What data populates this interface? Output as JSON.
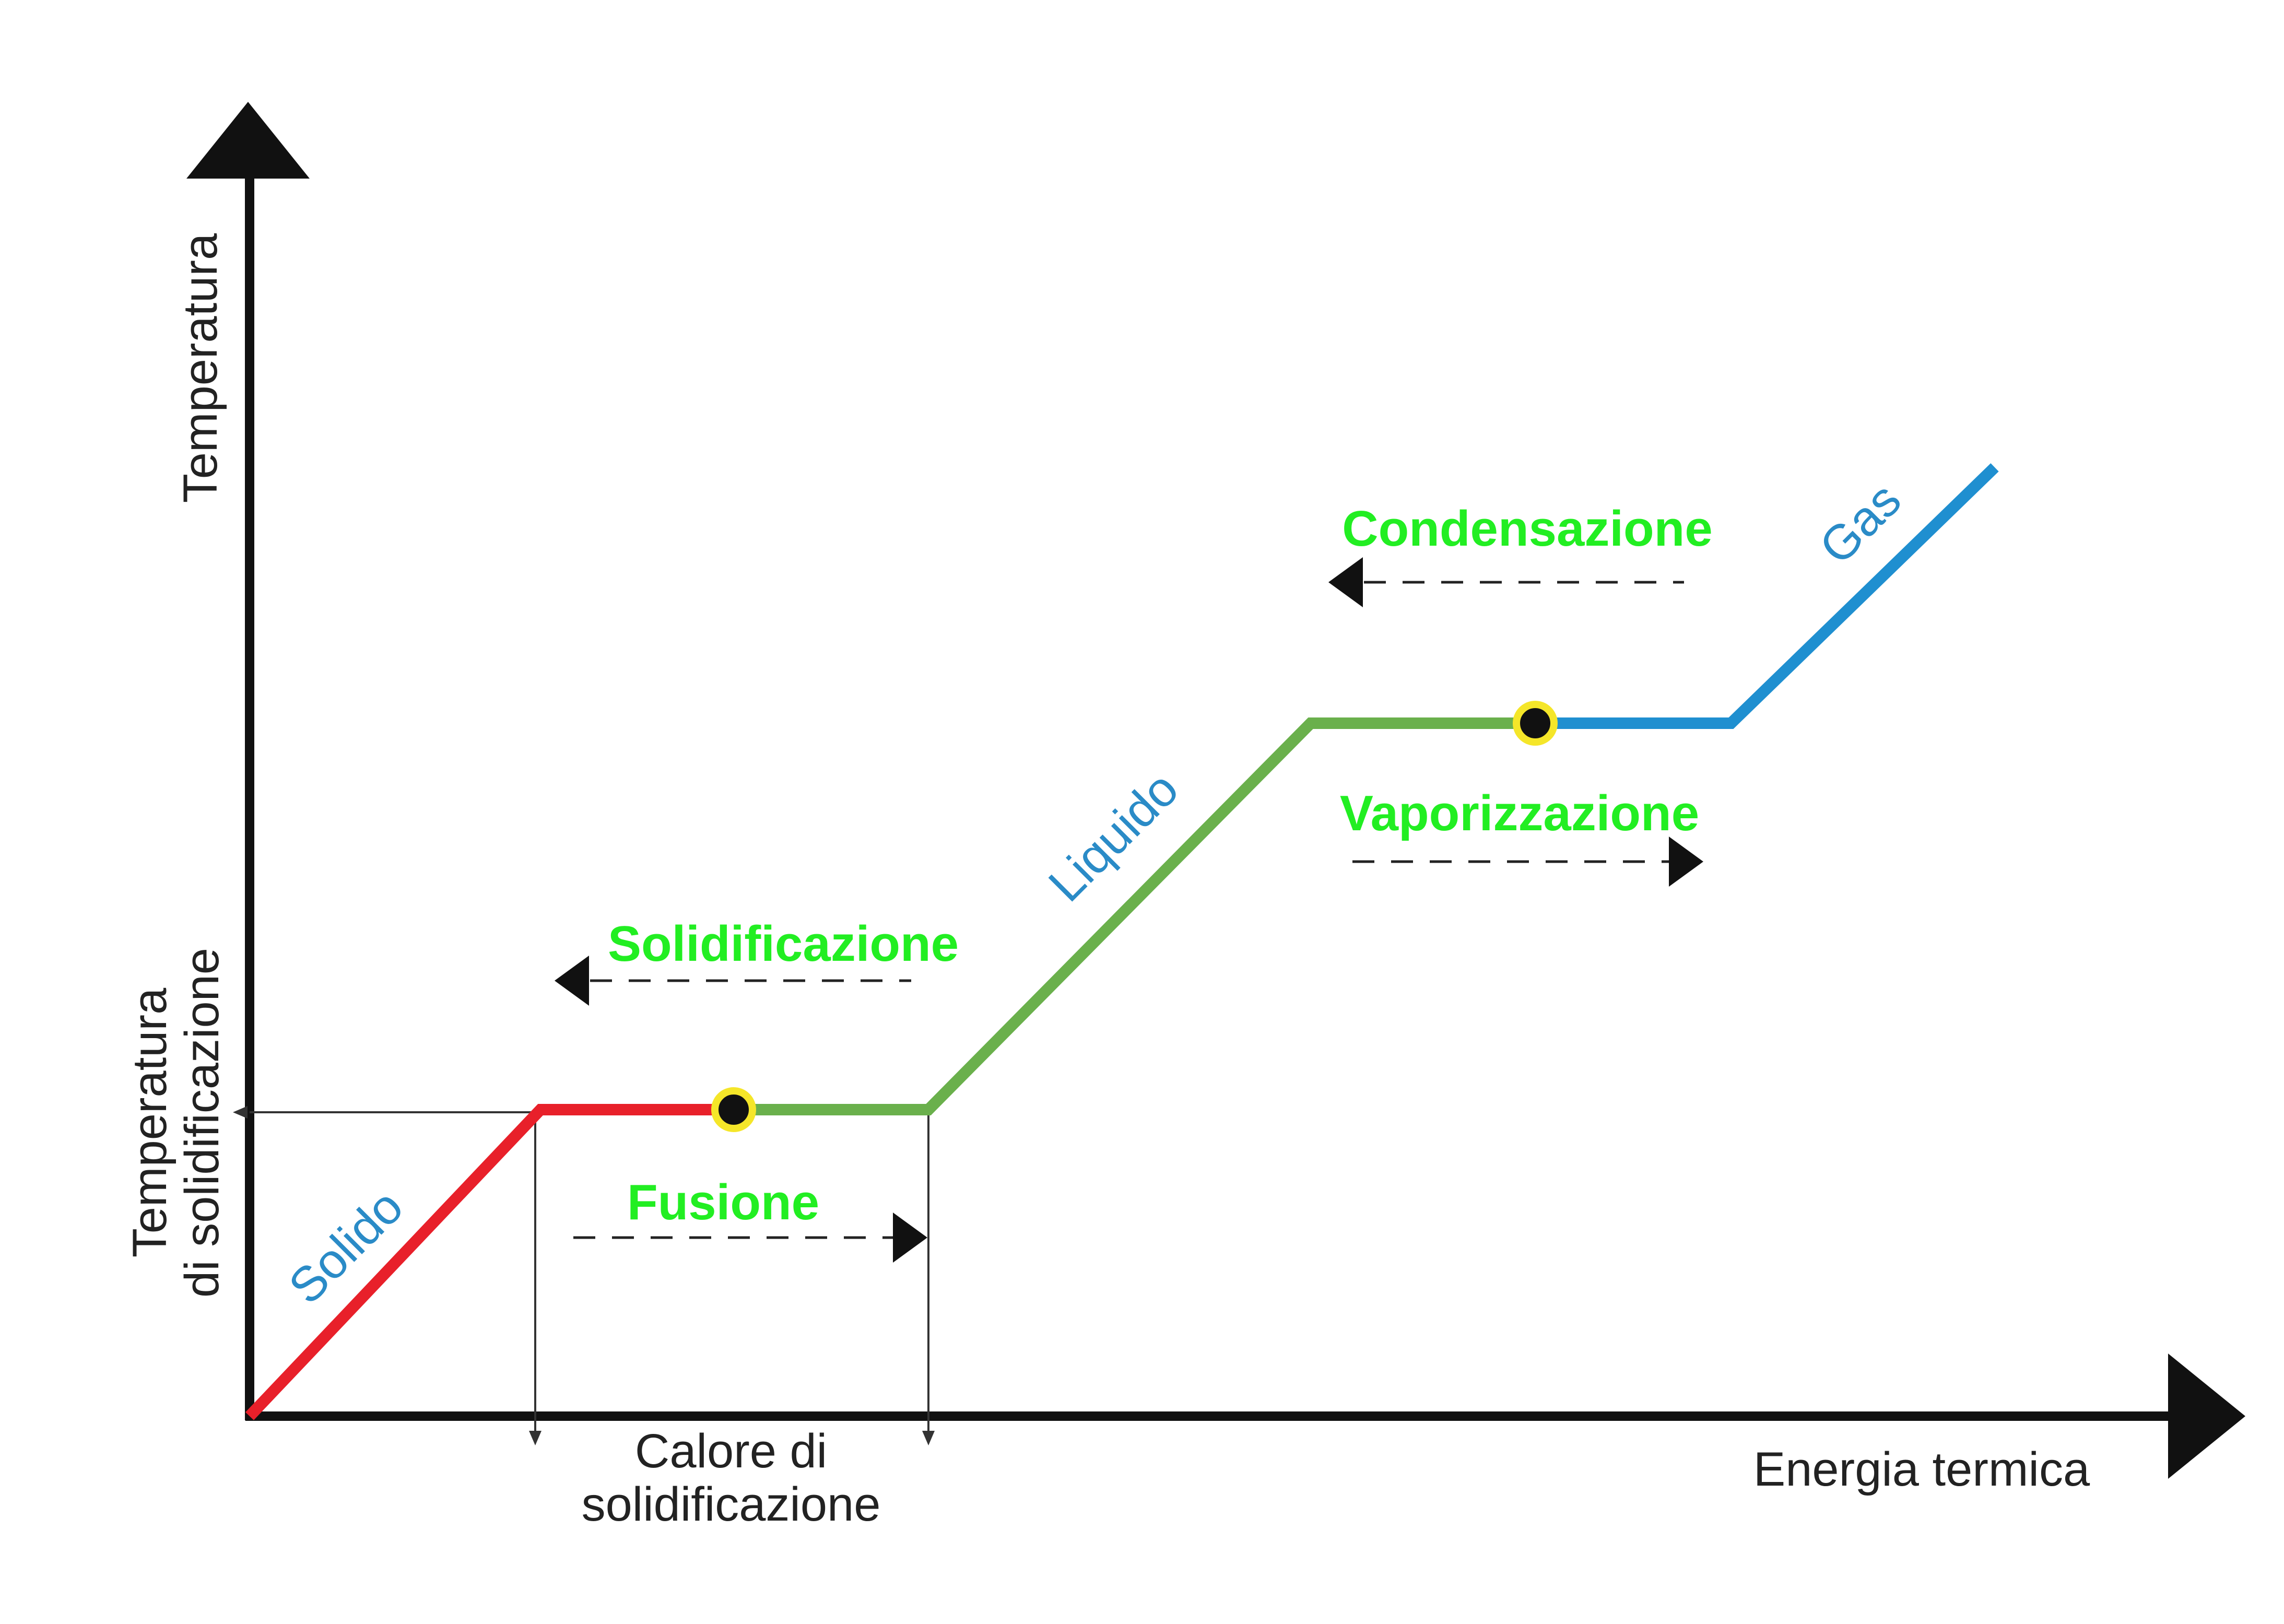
{
  "axes": {
    "y_label": "Temperatura",
    "x_label": "Energia termica"
  },
  "reference": {
    "y_marker_line1": "Temperatura",
    "y_marker_line2": "di solidificazione",
    "x_span_line1": "Calore di",
    "x_span_line2": "solidificazione"
  },
  "phases": {
    "solid": "Solido",
    "liquid": "Liquido",
    "gas": "Gas"
  },
  "transitions": {
    "solidification": "Solidificazione",
    "fusion": "Fusione",
    "condensation": "Condensazione",
    "vaporization": "Vaporizzazione"
  },
  "colors": {
    "axis": "#111111",
    "solid_line": "#e8202a",
    "liquid_line": "#6ab04c",
    "gas_line": "#1f8fd0",
    "phase_text": "#2a8bc7",
    "transition_text": "#22ee22",
    "marker_fill": "#111111",
    "marker_ring": "#f5e629"
  }
}
